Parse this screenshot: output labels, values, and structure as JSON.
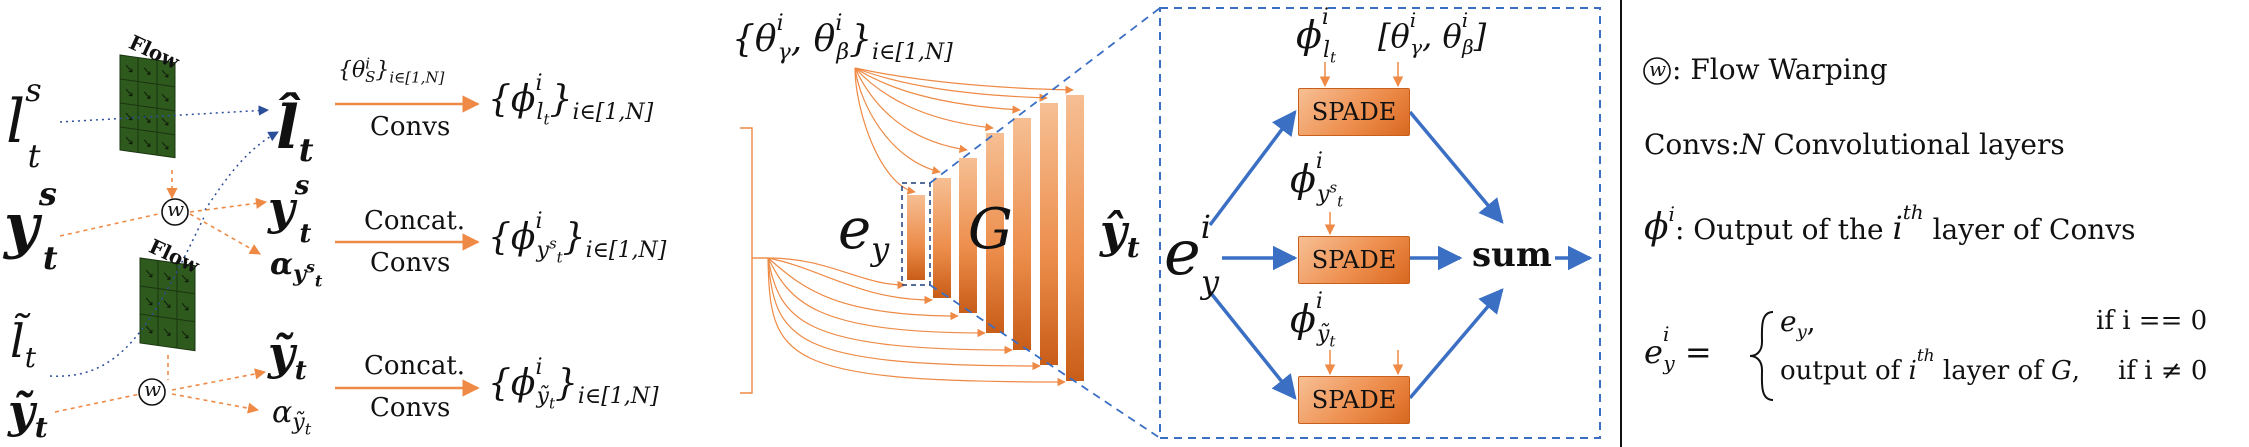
{
  "inputs": {
    "l_s": "l",
    "l_s_sup": "s",
    "l_s_sub": "t",
    "y_s": "y",
    "y_s_sup": "s",
    "y_s_sub": "t",
    "l_tilde": "l̃",
    "l_tilde_sub": "t",
    "y_tilde": "ỹ",
    "y_tilde_sub": "t"
  },
  "flow_label_top": "Flow",
  "flow_label_bottom": "Flow",
  "warp_symbol": "w",
  "mid": {
    "l_hat": "l̂",
    "l_hat_sub": "t",
    "y_warp": "y",
    "y_warp_sup": "s",
    "y_warp_sub": "t",
    "alpha_1": "α",
    "alpha_1_sub": "y",
    "alpha_1_subsup": "s",
    "alpha_1_subsub": "t",
    "y_tw": "ỹ",
    "y_tw_sub": "t",
    "alpha_2": "α",
    "alpha_2_sub": "ỹ",
    "alpha_2_subsub": "t"
  },
  "branches": {
    "top_param": "{θ",
    "top_param_sup": "i",
    "top_param_sub": "S",
    "top_param_tail": "}",
    "top_param_range": "i∈[1,N]",
    "top_op": "Convs",
    "mid_op1": "Concat.",
    "mid_op2": "Convs",
    "bot_op1": "Concat.",
    "bot_op2": "Convs"
  },
  "outputs": {
    "phi": "{ϕ",
    "sup": "i",
    "sub_1": "l",
    "sub_1_s": "t",
    "sub_2": "y",
    "sub_2_sup": "s",
    "sub_2_s": "t",
    "sub_3": "ỹ",
    "sub_3_s": "t",
    "close": "}",
    "range": "i∈[1,N]"
  },
  "generator": {
    "params": "{θ",
    "params_mid": ", θ",
    "gamma": "γ",
    "beta": "β",
    "sup": "i",
    "close": "}",
    "range": "i∈[1,N]",
    "e_y": "e",
    "e_y_sub": "y",
    "G": "G",
    "y_hat": "ŷ",
    "y_hat_sub": "t"
  },
  "zoom": {
    "phi_top": "ϕ",
    "phi_top_sup": "i",
    "phi_top_sub": "l",
    "phi_top_subsub": "t",
    "params": "[θ",
    "params_mid": ", θ",
    "gamma": "γ",
    "beta": "β",
    "params_sup": "i",
    "params_close": "]",
    "spade_1": "SPADE",
    "spade_2": "SPADE",
    "spade_3": "SPADE",
    "phi_mid": "ϕ",
    "phi_mid_sup": "i",
    "phi_mid_sub": "y",
    "phi_mid_subsup": "s",
    "phi_mid_subsub": "t",
    "phi_bot": "ϕ",
    "phi_bot_sup": "i",
    "phi_bot_sub": "ỹ",
    "phi_bot_subsub": "t",
    "e": "e",
    "e_sup": "i",
    "e_sub": "y",
    "sum": "sum"
  },
  "legend": {
    "warp_symbol": "w",
    "warp_text": ": Flow Warping",
    "convs_label": "Convs:",
    "convs_N": "N",
    "convs_text": " Convolutional layers",
    "phi": "ϕ",
    "phi_sup": "i",
    "phi_text1": ": Output of the ",
    "phi_ith": "i",
    "phi_th": "th",
    "phi_text2": " layer of Convs",
    "eq_e": "e",
    "eq_e_sup": "i",
    "eq_e_sub": "y",
    "eq_eq": " = ",
    "case1_val": "e",
    "case1_val_sub": "y",
    "case1_cond": "if i == 0",
    "case2_val1": "output of ",
    "case2_ith": "i",
    "case2_th": "th",
    "case2_val2": " layer of ",
    "case2_G": "G",
    "case2_cond": "if i ≠ 0"
  },
  "colors": {
    "orange": "#ee8a45",
    "blue": "#3a6fc4",
    "dark_blue_dotted": "#2c4f9a",
    "flow_green": "#2f5a1e"
  }
}
